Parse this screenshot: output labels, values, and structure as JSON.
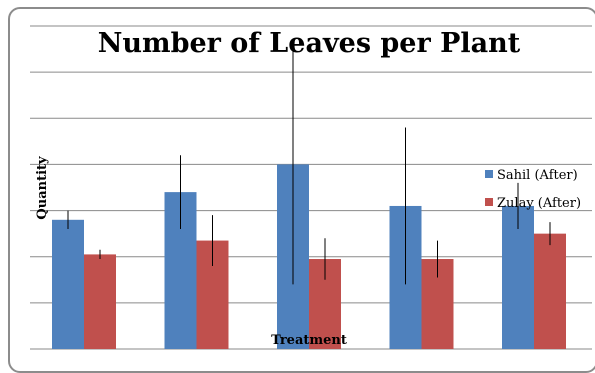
{
  "chart_data": {
    "type": "bar",
    "title": "Number of Leaves per Plant",
    "xlabel": "Treatment",
    "ylabel": "Quantity",
    "categories": [
      "",
      "",
      "",
      "",
      ""
    ],
    "ylim": [
      0,
      7
    ],
    "grid": true,
    "legend_position": "right",
    "series": [
      {
        "name": "Sahil (After)",
        "color": "#4f81bd",
        "values": [
          2.8,
          3.4,
          4.0,
          3.1,
          3.1
        ],
        "error": [
          0.2,
          0.8,
          2.6,
          1.7,
          0.5
        ]
      },
      {
        "name": "Zulay (After)",
        "color": "#c0504d",
        "values": [
          2.05,
          2.35,
          1.95,
          1.95,
          2.5
        ],
        "error": [
          0.1,
          0.55,
          0.45,
          0.4,
          0.25
        ]
      }
    ]
  }
}
